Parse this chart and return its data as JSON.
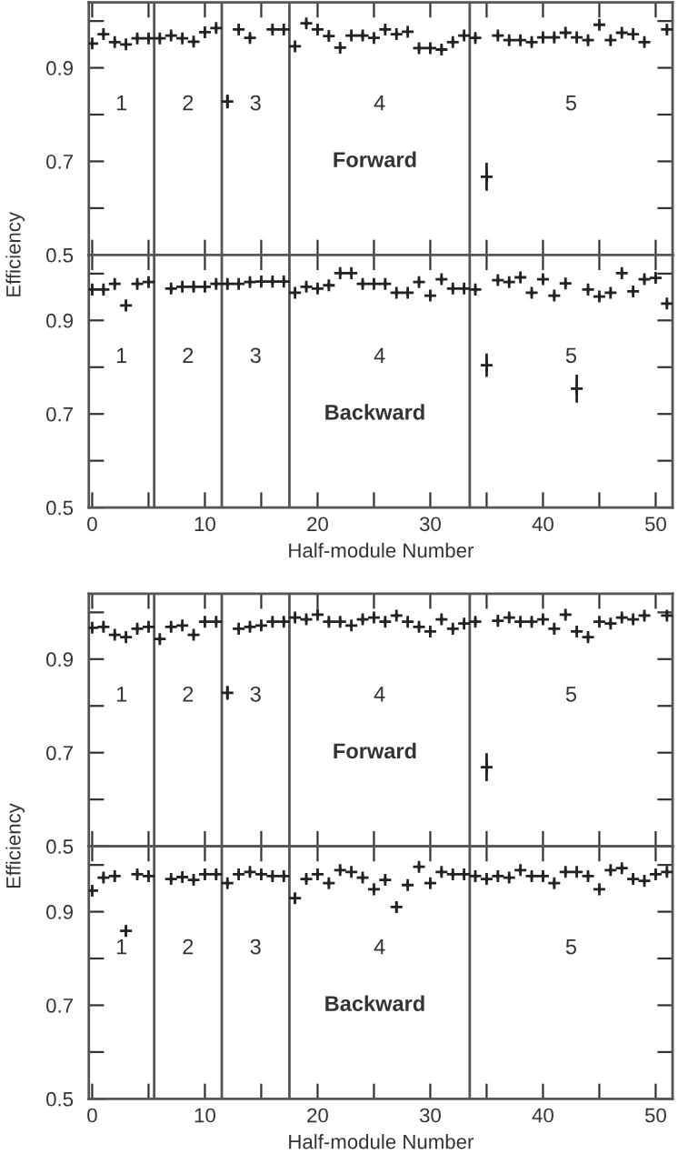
{
  "chart_data": [
    {
      "type": "scatter",
      "ylabel": "Efficiency",
      "tick_labels": "y",
      "marker": "cross",
      "grid": false,
      "x": [
        0,
        1,
        2,
        3,
        4,
        5,
        6,
        7,
        8,
        9,
        10,
        11,
        12,
        13,
        14,
        15,
        16,
        17,
        18,
        19,
        20,
        21,
        22,
        23,
        24,
        25,
        26,
        27,
        28,
        29,
        30,
        31,
        32,
        33,
        34,
        35,
        36,
        37,
        38,
        39,
        40,
        41,
        42,
        43,
        44,
        45,
        46,
        47,
        48,
        49,
        50,
        51
      ],
      "series": [
        {
          "color": "#222222",
          "values": [
            0.952,
            0.972,
            0.955,
            0.95,
            0.963,
            0.963,
            0.963,
            0.969,
            0.963,
            0.956,
            0.976,
            0.985,
            0.828,
            0.982,
            0.964,
            null,
            0.982,
            0.982,
            0.946,
            0.995,
            0.982,
            0.968,
            0.943,
            0.969,
            0.969,
            0.964,
            0.982,
            0.972,
            0.977,
            0.942,
            0.942,
            0.939,
            0.955,
            0.969,
            0.964,
            0.667,
            0.969,
            0.959,
            0.959,
            0.955,
            0.965,
            0.965,
            0.975,
            0.965,
            0.959,
            0.992,
            0.959,
            0.975,
            0.972,
            0.955,
            null,
            0.982
          ],
          "errors": [
            0.006,
            0.006,
            0.006,
            0.006,
            0.006,
            0.006,
            0.006,
            0.006,
            0.006,
            0.006,
            0.006,
            0.006,
            0.015,
            0.006,
            0.006,
            null,
            0.006,
            0.006,
            0.006,
            0.006,
            0.006,
            0.006,
            0.006,
            0.006,
            0.006,
            0.006,
            0.006,
            0.006,
            0.006,
            0.006,
            0.006,
            0.006,
            0.006,
            0.006,
            0.006,
            0.03,
            0.006,
            0.006,
            0.006,
            0.006,
            0.006,
            0.006,
            0.006,
            0.006,
            0.006,
            0.006,
            0.006,
            0.006,
            0.006,
            0.006,
            null,
            0.006
          ]
        }
      ],
      "xlim": [
        -0.3,
        51.5
      ],
      "xticks": [
        0,
        {
          "value": 5,
          "label": null
        },
        10,
        {
          "value": 15,
          "label": null
        },
        20,
        {
          "value": 25,
          "label": null
        },
        30,
        {
          "value": 35,
          "label": null
        },
        40,
        {
          "value": 45,
          "label": null
        },
        50
      ],
      "ylim": [
        0.5,
        1.04
      ],
      "yticks": [
        0.5,
        {
          "value": 0.6,
          "label": null
        },
        0.7,
        {
          "value": 0.8,
          "label": null
        },
        0.9,
        {
          "value": 1.0,
          "label": null
        }
      ],
      "ref_lines": [
        {
          "axis": "x",
          "value": 5.5,
          "color": "#555555"
        },
        {
          "axis": "x",
          "value": 11.5,
          "color": "#555555"
        },
        {
          "axis": "x",
          "value": 17.5,
          "color": "#555555"
        },
        {
          "axis": "x",
          "value": 33.5,
          "color": "#555555"
        }
      ],
      "annotations": [
        "1",
        "2",
        "3",
        "4",
        "5",
        "Forward"
      ]
    },
    {
      "type": "scatter",
      "xlabel": "Half-module Number",
      "marker": "cross",
      "grid": false,
      "x": [
        0,
        1,
        2,
        3,
        4,
        5,
        6,
        7,
        8,
        9,
        10,
        11,
        12,
        13,
        14,
        15,
        16,
        17,
        18,
        19,
        20,
        21,
        22,
        23,
        24,
        25,
        26,
        27,
        28,
        29,
        30,
        31,
        32,
        33,
        34,
        35,
        36,
        37,
        38,
        39,
        40,
        41,
        42,
        43,
        44,
        45,
        46,
        47,
        48,
        49,
        50,
        51
      ],
      "series": [
        {
          "color": "#222222",
          "values": [
            0.966,
            0.966,
            0.978,
            0.932,
            0.978,
            0.982,
            null,
            0.968,
            0.972,
            0.972,
            0.972,
            0.978,
            0.978,
            0.978,
            0.982,
            0.983,
            0.983,
            0.983,
            0.959,
            0.972,
            0.968,
            0.975,
            1.001,
            1.001,
            0.978,
            0.978,
            0.978,
            0.959,
            0.959,
            0.982,
            0.953,
            0.988,
            0.968,
            0.968,
            0.966,
            0.804,
            0.986,
            0.982,
            0.992,
            0.959,
            0.988,
            0.953,
            0.979,
            0.754,
            0.966,
            0.951,
            0.959,
            1.001,
            0.962,
            0.988,
            0.991,
            0.936
          ],
          "errors": [
            0.006,
            0.006,
            0.006,
            0.01,
            0.006,
            0.006,
            null,
            0.006,
            0.006,
            0.006,
            0.006,
            0.006,
            0.006,
            0.006,
            0.006,
            0.006,
            0.006,
            0.006,
            0.006,
            0.006,
            0.006,
            0.006,
            0.006,
            0.006,
            0.006,
            0.006,
            0.006,
            0.006,
            0.006,
            0.006,
            0.006,
            0.006,
            0.006,
            0.006,
            0.006,
            0.025,
            0.006,
            0.006,
            0.006,
            0.006,
            0.006,
            0.006,
            0.006,
            0.03,
            0.006,
            0.006,
            0.006,
            0.006,
            0.006,
            0.006,
            0.006,
            0.006
          ]
        }
      ],
      "xlim": [
        -0.3,
        51.5
      ],
      "xticks": [
        0,
        {
          "value": 5,
          "label": null
        },
        10,
        {
          "value": 15,
          "label": null
        },
        20,
        {
          "value": 25,
          "label": null
        },
        30,
        {
          "value": 35,
          "label": null
        },
        40,
        {
          "value": 45,
          "label": null
        },
        50
      ],
      "ylim": [
        0.5,
        1.04
      ],
      "yticks": [
        0.5,
        {
          "value": 0.6,
          "label": null
        },
        0.7,
        {
          "value": 0.8,
          "label": null
        },
        0.9,
        {
          "value": 1.0,
          "label": null
        }
      ],
      "ref_lines": [
        {
          "axis": "x",
          "value": 5.5,
          "color": "#555555"
        },
        {
          "axis": "x",
          "value": 11.5,
          "color": "#555555"
        },
        {
          "axis": "x",
          "value": 17.5,
          "color": "#555555"
        },
        {
          "axis": "x",
          "value": 33.5,
          "color": "#555555"
        }
      ],
      "annotations": [
        "1",
        "2",
        "3",
        "4",
        "5",
        "Backward"
      ]
    },
    {
      "type": "scatter",
      "ylabel": "Efficiency",
      "tick_labels": "y",
      "marker": "cross",
      "grid": false,
      "x": [
        0,
        1,
        2,
        3,
        4,
        5,
        6,
        7,
        8,
        9,
        10,
        11,
        12,
        13,
        14,
        15,
        16,
        17,
        18,
        19,
        20,
        21,
        22,
        23,
        24,
        25,
        26,
        27,
        28,
        29,
        30,
        31,
        32,
        33,
        34,
        35,
        36,
        37,
        38,
        39,
        40,
        41,
        42,
        43,
        44,
        45,
        46,
        47,
        48,
        49,
        50,
        51
      ],
      "series": [
        {
          "color": "#222222",
          "values": [
            0.967,
            0.969,
            0.952,
            0.947,
            0.965,
            0.969,
            0.943,
            0.969,
            0.972,
            0.952,
            0.98,
            0.98,
            0.828,
            0.965,
            0.969,
            0.972,
            0.98,
            0.98,
            0.989,
            0.985,
            0.995,
            0.98,
            0.98,
            0.972,
            0.985,
            0.989,
            0.98,
            0.993,
            0.98,
            0.969,
            0.959,
            0.985,
            0.965,
            0.976,
            0.98,
            0.669,
            0.982,
            0.989,
            0.98,
            0.98,
            0.985,
            0.965,
            0.995,
            0.959,
            0.947,
            0.98,
            0.976,
            0.989,
            0.985,
            0.993,
            null,
            0.993
          ],
          "errors": [
            0.006,
            0.006,
            0.006,
            0.006,
            0.006,
            0.006,
            0.006,
            0.006,
            0.006,
            0.006,
            0.006,
            0.006,
            0.015,
            0.006,
            0.006,
            0.006,
            0.006,
            0.006,
            0.006,
            0.006,
            0.006,
            0.006,
            0.006,
            0.006,
            0.006,
            0.006,
            0.006,
            0.006,
            0.006,
            0.006,
            0.006,
            0.006,
            0.006,
            0.006,
            0.006,
            0.03,
            0.006,
            0.006,
            0.006,
            0.006,
            0.006,
            0.006,
            0.006,
            0.006,
            0.006,
            0.006,
            0.006,
            0.006,
            0.006,
            0.006,
            null,
            0.006
          ]
        }
      ],
      "xlim": [
        -0.3,
        51.5
      ],
      "xticks": [
        0,
        {
          "value": 5,
          "label": null
        },
        10,
        {
          "value": 15,
          "label": null
        },
        20,
        {
          "value": 25,
          "label": null
        },
        30,
        {
          "value": 35,
          "label": null
        },
        40,
        {
          "value": 45,
          "label": null
        },
        50
      ],
      "ylim": [
        0.5,
        1.04
      ],
      "yticks": [
        0.5,
        {
          "value": 0.6,
          "label": null
        },
        0.7,
        {
          "value": 0.8,
          "label": null
        },
        0.9,
        {
          "value": 1.0,
          "label": null
        }
      ],
      "ref_lines": [
        {
          "axis": "x",
          "value": 5.5,
          "color": "#555555"
        },
        {
          "axis": "x",
          "value": 11.5,
          "color": "#555555"
        },
        {
          "axis": "x",
          "value": 17.5,
          "color": "#555555"
        },
        {
          "axis": "x",
          "value": 33.5,
          "color": "#555555"
        }
      ],
      "annotations": [
        "1",
        "2",
        "3",
        "4",
        "5",
        "Forward"
      ]
    },
    {
      "type": "scatter",
      "xlabel": "Half-module Number",
      "marker": "cross",
      "grid": false,
      "x": [
        0,
        1,
        2,
        3,
        4,
        5,
        6,
        7,
        8,
        9,
        10,
        11,
        12,
        13,
        14,
        15,
        16,
        17,
        18,
        19,
        20,
        21,
        22,
        23,
        24,
        25,
        26,
        27,
        28,
        29,
        30,
        31,
        32,
        33,
        34,
        35,
        36,
        37,
        38,
        39,
        40,
        41,
        42,
        43,
        44,
        45,
        46,
        47,
        48,
        49,
        50,
        51
      ],
      "series": [
        {
          "color": "#222222",
          "values": [
            0.945,
            0.973,
            0.976,
            0.859,
            0.98,
            0.976,
            null,
            0.97,
            0.974,
            0.968,
            0.98,
            0.98,
            0.961,
            0.98,
            0.985,
            0.98,
            0.976,
            0.976,
            0.929,
            0.97,
            0.98,
            0.961,
            0.989,
            0.985,
            0.973,
            0.948,
            0.968,
            0.91,
            0.957,
            0.996,
            0.961,
            0.985,
            0.98,
            0.98,
            0.976,
            0.97,
            0.976,
            0.973,
            0.989,
            0.976,
            0.976,
            0.961,
            0.985,
            0.985,
            0.976,
            0.948,
            0.989,
            0.993,
            0.97,
            0.966,
            0.98,
            0.985
          ],
          "errors": [
            0.006,
            0.006,
            0.006,
            0.012,
            0.006,
            0.006,
            null,
            0.006,
            0.006,
            0.006,
            0.006,
            0.006,
            0.006,
            0.006,
            0.006,
            0.006,
            0.006,
            0.006,
            0.01,
            0.006,
            0.006,
            0.006,
            0.006,
            0.006,
            0.006,
            0.006,
            0.006,
            0.012,
            0.006,
            0.006,
            0.006,
            0.006,
            0.006,
            0.006,
            0.006,
            0.006,
            0.006,
            0.006,
            0.006,
            0.006,
            0.006,
            0.006,
            0.006,
            0.006,
            0.006,
            0.006,
            0.006,
            0.006,
            0.006,
            0.006,
            0.006,
            0.006
          ]
        }
      ],
      "xlim": [
        -0.3,
        51.5
      ],
      "xticks": [
        0,
        {
          "value": 5,
          "label": null
        },
        10,
        {
          "value": 15,
          "label": null
        },
        20,
        {
          "value": 25,
          "label": null
        },
        30,
        {
          "value": 35,
          "label": null
        },
        40,
        {
          "value": 45,
          "label": null
        },
        50
      ],
      "ylim": [
        0.5,
        1.04
      ],
      "yticks": [
        0.5,
        {
          "value": 0.6,
          "label": null
        },
        0.7,
        {
          "value": 0.8,
          "label": null
        },
        0.9,
        {
          "value": 1.0,
          "label": null
        }
      ],
      "ref_lines": [
        {
          "axis": "x",
          "value": 5.5,
          "color": "#555555"
        },
        {
          "axis": "x",
          "value": 11.5,
          "color": "#555555"
        },
        {
          "axis": "x",
          "value": 17.5,
          "color": "#555555"
        },
        {
          "axis": "x",
          "value": 33.5,
          "color": "#555555"
        }
      ],
      "annotations": [
        "1",
        "2",
        "3",
        "4",
        "5",
        "Backward"
      ]
    }
  ]
}
